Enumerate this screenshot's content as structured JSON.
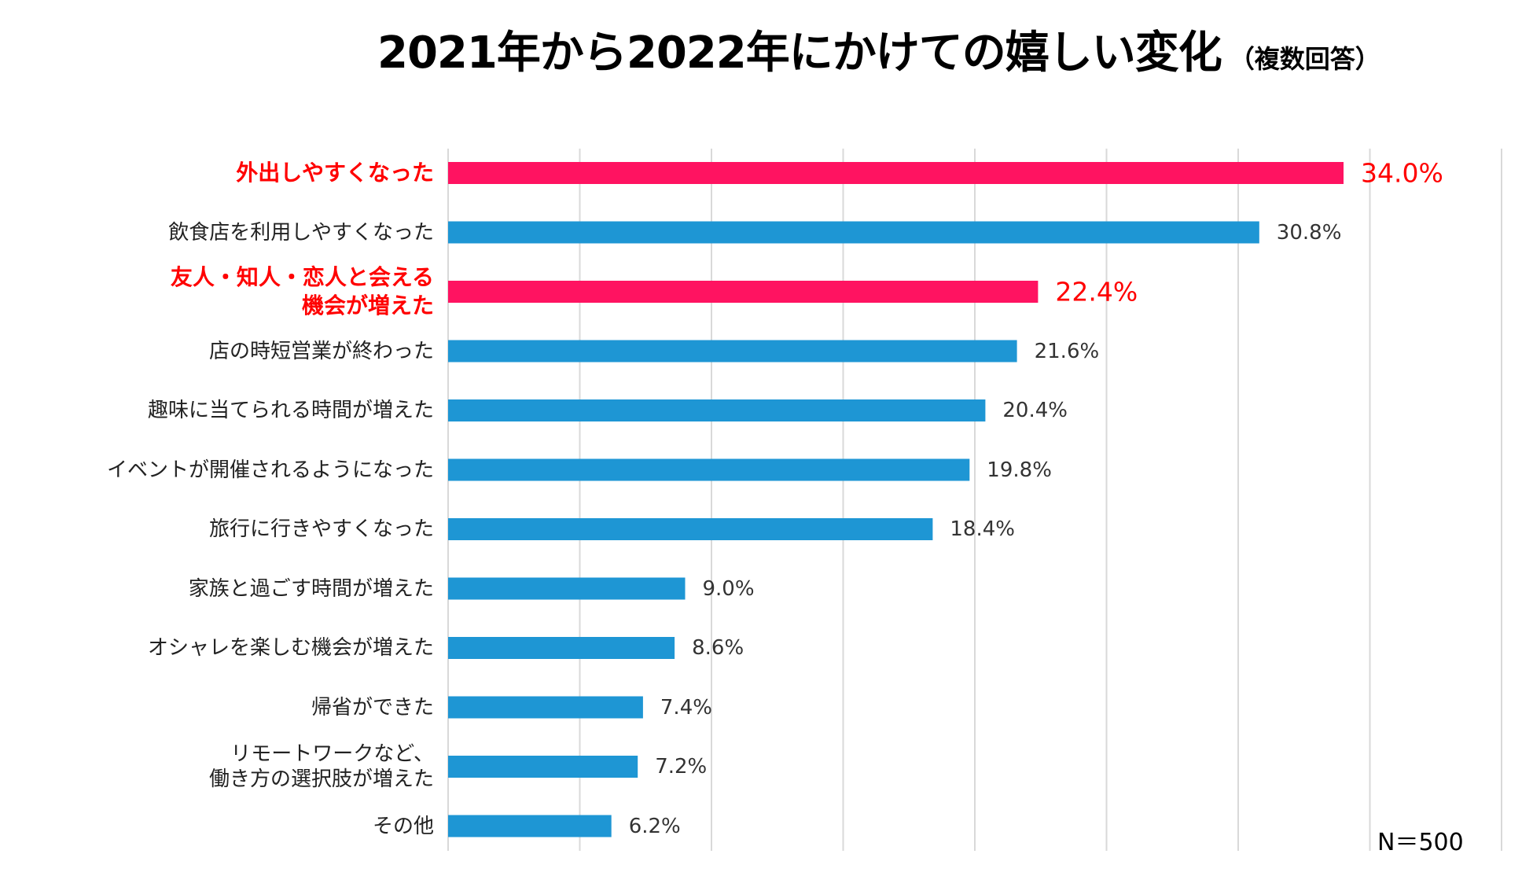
{
  "chart_data": {
    "type": "bar",
    "orientation": "horizontal",
    "title": "2021年から2022年にかけての嬉しい変化",
    "subtitle": "（複数回答）",
    "categories": [
      "外出しやすくなった",
      "飲食店を利用しやすくなった",
      "友人・知人・恋人と会える\n機会が増えた",
      "店の時短営業が終わった",
      "趣味に当てられる時間が増えた",
      "イベントが開催されるようになった",
      "旅行に行きやすくなった",
      "家族と過ごす時間が増えた",
      "オシャレを楽しむ機会が増えた",
      "帰省ができた",
      "リモートワークなど、\n働き方の選択肢が増えた",
      "その他"
    ],
    "values": [
      34.0,
      30.8,
      22.4,
      21.6,
      20.4,
      19.8,
      18.4,
      9.0,
      8.6,
      7.4,
      7.2,
      6.2
    ],
    "value_labels": [
      "34.0%",
      "30.8%",
      "22.4%",
      "21.6%",
      "20.4%",
      "19.8%",
      "18.4%",
      "9.0%",
      "8.6%",
      "7.4%",
      "7.2%",
      "6.2%"
    ],
    "highlighted": [
      true,
      false,
      true,
      false,
      false,
      false,
      false,
      false,
      false,
      false,
      false,
      false
    ],
    "xlim": [
      0,
      40
    ],
    "grid_step": 5,
    "grid": true,
    "xlabel": "",
    "ylabel": "",
    "note": "N＝500",
    "colors": {
      "bar": "#1E96D4",
      "highlight_bar": "#FF1361",
      "highlight_text": "#FF0000",
      "grid": "#D9D9D9"
    }
  }
}
